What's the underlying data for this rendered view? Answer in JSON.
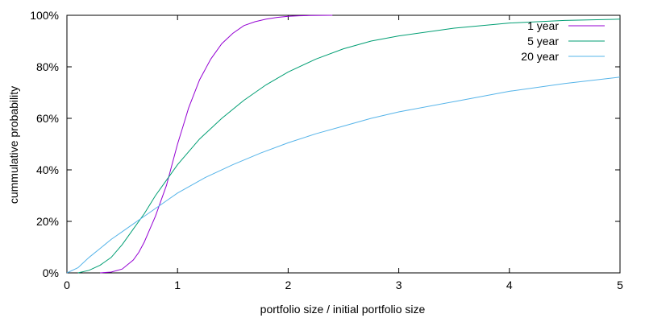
{
  "chart_data": {
    "type": "line",
    "title": "",
    "xlabel": "portfolio size / initial portfolio size",
    "ylabel": "cummulative probability",
    "xlim": [
      0,
      5
    ],
    "ylim": [
      0,
      100
    ],
    "x_ticks": [
      0,
      1,
      2,
      3,
      4,
      5
    ],
    "x_tick_labels": [
      "0",
      "1",
      "2",
      "3",
      "4",
      "5"
    ],
    "y_ticks": [
      0,
      20,
      40,
      60,
      80,
      100
    ],
    "y_tick_labels": [
      "0%",
      "20%",
      "40%",
      "60%",
      "80%",
      "100%"
    ],
    "grid": false,
    "legend_position": "top-right",
    "series": [
      {
        "name": "1 year",
        "color": "#9400d3",
        "x": [
          0.3,
          0.4,
          0.5,
          0.6,
          0.65,
          0.7,
          0.75,
          0.8,
          0.85,
          0.9,
          0.95,
          1.0,
          1.05,
          1.1,
          1.2,
          1.3,
          1.4,
          1.5,
          1.6,
          1.7,
          1.8,
          1.9,
          2.0,
          2.1,
          2.2,
          2.4
        ],
        "y": [
          0,
          0.3,
          1.5,
          5,
          8,
          12,
          17,
          22,
          28,
          34,
          42,
          50,
          57,
          64,
          75,
          83,
          89,
          93,
          96,
          97.5,
          98.5,
          99.2,
          99.6,
          99.8,
          99.9,
          100
        ]
      },
      {
        "name": "5 year",
        "color": "#009e73",
        "x": [
          0.1,
          0.2,
          0.3,
          0.4,
          0.5,
          0.6,
          0.7,
          0.8,
          0.9,
          1.0,
          1.2,
          1.4,
          1.6,
          1.8,
          2.0,
          2.25,
          2.5,
          2.75,
          3.0,
          3.5,
          4.0,
          4.5,
          5.0
        ],
        "y": [
          0,
          1,
          3,
          6,
          11,
          17,
          23,
          30,
          36,
          42,
          52,
          60,
          67,
          73,
          78,
          83,
          87,
          90,
          92,
          95,
          97,
          98,
          98.5
        ]
      },
      {
        "name": "20 year",
        "color": "#56b4e9",
        "x": [
          0.0,
          0.1,
          0.2,
          0.3,
          0.4,
          0.5,
          0.6,
          0.7,
          0.8,
          0.9,
          1.0,
          1.25,
          1.5,
          1.75,
          2.0,
          2.25,
          2.5,
          2.75,
          3.0,
          3.5,
          4.0,
          4.5,
          5.0
        ],
        "y": [
          0,
          2,
          6,
          9.5,
          13,
          16,
          19,
          22,
          25,
          28,
          31,
          37,
          42,
          46.5,
          50.5,
          54,
          57,
          60,
          62.5,
          66.5,
          70.5,
          73.5,
          76
        ]
      }
    ]
  }
}
